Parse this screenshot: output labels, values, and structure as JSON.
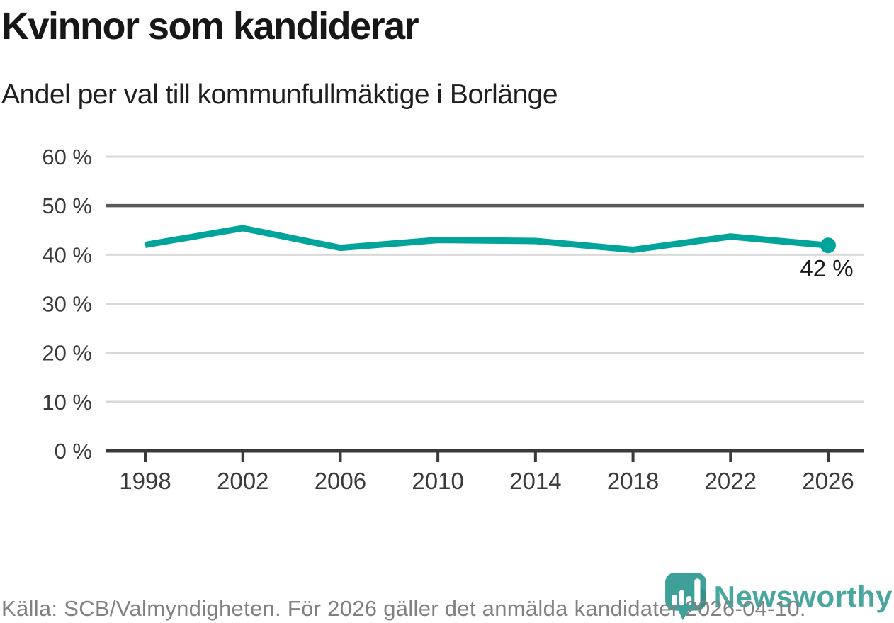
{
  "header": {
    "title": "Kvinnor som kandiderar",
    "subtitle": "Andel per val till kommunfullmäktige i Borlänge"
  },
  "chart_data": {
    "type": "line",
    "categories": [
      "1998",
      "2002",
      "2006",
      "2010",
      "2014",
      "2018",
      "2022",
      "2026"
    ],
    "values": [
      42,
      45.4,
      41.4,
      43,
      42.8,
      41,
      43.7,
      41.9
    ],
    "unit": "%",
    "ylim": [
      0,
      60
    ],
    "y_ticks": [
      0,
      10,
      20,
      30,
      40,
      50,
      60
    ],
    "y_tick_labels": [
      "0 %",
      "10 %",
      "20 %",
      "30 %",
      "40 %",
      "50 %",
      "60 %"
    ],
    "reference_line": 50,
    "grid": true,
    "legend": "none",
    "end_label": "42 %",
    "line_color": "#00a49b"
  },
  "footer": {
    "source": "Källa: SCB/Valmyndigheten. För 2026 gäller det anmälda kandidater 2026-04-10."
  },
  "logo": {
    "brand": "Newsworthy",
    "icon": "newsworthy-bubble-barchart-icon"
  },
  "colors": {
    "accent": "#00a49b",
    "brand_teal_icon": "#3da19a",
    "brand_teal_text": "#4aa7a0",
    "title_text": "#171717",
    "axis_text": "#3a3a3a",
    "muted_text": "#7f8182",
    "grid": "#d9d9d9",
    "reference": "#58595b",
    "axis": "#3a3a3a",
    "point_label": "#1a1a1a"
  }
}
